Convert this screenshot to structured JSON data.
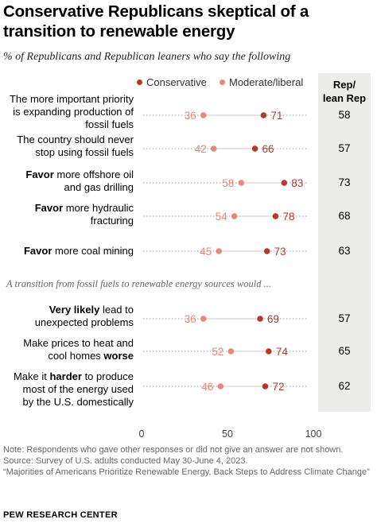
{
  "title": "Conservative Republicans skeptical of a transition to renewable energy",
  "subtitle": "% of Republicans and Republican leaners who say the following",
  "rep_header": [
    "Rep/",
    "lean Rep"
  ],
  "section_note": "A transition from fossil fuels to renewable energy sources would ...",
  "notes": {
    "note": "Note: Respondents who gave other responses or did not give an answer are not shown.",
    "source": "Source: Survey of U.S. adults conducted May 30-June 4, 2023.",
    "report": "“Majorities of Americans Prioritize Renewable Energy, Back Steps to Address Climate Change”"
  },
  "brand": "PEW RESEARCH CENTER",
  "colors": {
    "conservative": "#b33a2b",
    "moderate": "#e8877a",
    "dotted_line": "#999999",
    "rep_column": "#ececea"
  },
  "chart_data": {
    "type": "scatter",
    "title": "Conservative Republicans skeptical of a transition to renewable energy",
    "xlim": [
      0,
      100
    ],
    "x_ticks": [
      "0",
      "50",
      "100"
    ],
    "series": [
      {
        "name": "Conservative",
        "values": [
          71,
          66,
          83,
          78,
          73,
          69,
          74,
          72
        ]
      },
      {
        "name": "Moderate/liberal",
        "values": [
          36,
          42,
          58,
          54,
          45,
          36,
          52,
          46
        ]
      }
    ],
    "rep_lean_rep": [
      58,
      57,
      73,
      68,
      63,
      57,
      65,
      62
    ],
    "rows": [
      {
        "label_lines": [
          [
            {
              "t": "The more important priority",
              "b": false
            }
          ],
          [
            {
              "t": "is expanding production of",
              "b": false
            }
          ],
          [
            {
              "t": "fossil fuels",
              "b": false
            }
          ]
        ],
        "conservative": "71",
        "moderate": "36",
        "rep": "58"
      },
      {
        "label_lines": [
          [
            {
              "t": "The country should never",
              "b": false
            }
          ],
          [
            {
              "t": "stop using fossil fuels",
              "b": false
            }
          ]
        ],
        "conservative": "66",
        "moderate": "42",
        "rep": "57"
      },
      {
        "label_lines": [
          [
            {
              "t": "Favor",
              "b": true
            },
            {
              "t": " more offshore oil",
              "b": false
            }
          ],
          [
            {
              "t": "and gas drilling",
              "b": false
            }
          ]
        ],
        "conservative": "83",
        "moderate": "58",
        "rep": "73"
      },
      {
        "label_lines": [
          [
            {
              "t": "Favor",
              "b": true
            },
            {
              "t": " more hydraulic",
              "b": false
            }
          ],
          [
            {
              "t": "fracturing",
              "b": false
            }
          ]
        ],
        "conservative": "78",
        "moderate": "54",
        "rep": "68"
      },
      {
        "label_lines": [
          [
            {
              "t": "Favor",
              "b": true
            },
            {
              "t": " more coal mining",
              "b": false
            }
          ]
        ],
        "conservative": "73",
        "moderate": "45",
        "rep": "63"
      },
      {
        "label_lines": [
          [
            {
              "t": "Very likely",
              "b": true
            },
            {
              "t": " lead to",
              "b": false
            }
          ],
          [
            {
              "t": "unexpected problems",
              "b": false
            }
          ]
        ],
        "conservative": "69",
        "moderate": "36",
        "rep": "57"
      },
      {
        "label_lines": [
          [
            {
              "t": "Make prices to heat and",
              "b": false
            }
          ],
          [
            {
              "t": "cool homes ",
              "b": false
            },
            {
              "t": "worse",
              "b": true
            }
          ]
        ],
        "conservative": "74",
        "moderate": "52",
        "rep": "65"
      },
      {
        "label_lines": [
          [
            {
              "t": "Make it ",
              "b": false
            },
            {
              "t": "harder",
              "b": true
            },
            {
              "t": " to produce",
              "b": false
            }
          ],
          [
            {
              "t": "most of the energy used",
              "b": false
            }
          ],
          [
            {
              "t": "by the U.S. domestically",
              "b": false
            }
          ]
        ],
        "conservative": "72",
        "moderate": "46",
        "rep": "62"
      }
    ]
  }
}
